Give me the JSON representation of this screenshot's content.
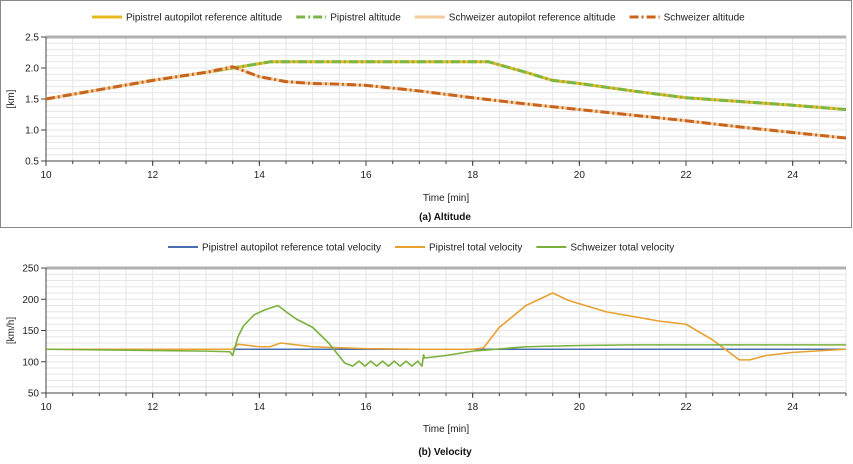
{
  "chart_data": [
    {
      "type": "line",
      "caption": "(a)  Altitude",
      "xlabel": "Time [min]",
      "ylabel": "[km]",
      "xlim": [
        10,
        25
      ],
      "ylim": [
        0.5,
        2.5
      ],
      "xticks": [
        10,
        12,
        14,
        16,
        18,
        20,
        22,
        24
      ],
      "yticks": [
        0.5,
        1.0,
        1.5,
        2.0,
        2.5
      ],
      "ytick_labels": [
        "0.5",
        "1.0",
        "1.5",
        "2.0",
        "2.5"
      ],
      "grid": true,
      "legend_position": "top",
      "series": [
        {
          "name": "Pipistrel autopilot reference altitude",
          "color": "#e8b820",
          "style": "solid",
          "x": [
            10,
            11,
            12,
            13,
            13.5,
            14,
            14.2,
            15,
            16,
            17,
            18,
            18.3,
            19,
            19.5,
            20,
            21,
            22,
            23,
            24,
            25
          ],
          "y": [
            1.5,
            1.65,
            1.8,
            1.93,
            2.0,
            2.07,
            2.1,
            2.1,
            2.1,
            2.1,
            2.1,
            2.1,
            1.93,
            1.8,
            1.75,
            1.63,
            1.52,
            1.46,
            1.4,
            1.33
          ]
        },
        {
          "name": "Pipistrel altitude",
          "color": "#7ab648",
          "style": "dashdot",
          "x": [
            10,
            11,
            12,
            13,
            13.5,
            14,
            14.2,
            15,
            16,
            17,
            18,
            18.3,
            19,
            19.5,
            20,
            21,
            22,
            23,
            24,
            25
          ],
          "y": [
            1.5,
            1.65,
            1.8,
            1.93,
            2.0,
            2.07,
            2.1,
            2.1,
            2.1,
            2.1,
            2.1,
            2.1,
            1.93,
            1.8,
            1.75,
            1.63,
            1.52,
            1.46,
            1.4,
            1.33
          ]
        },
        {
          "name": "Schweizer autopilot reference altitude",
          "color": "#f2cc9c",
          "style": "solid",
          "x": [
            10,
            11,
            12,
            13,
            13.5,
            14,
            14.5,
            15,
            15.5,
            16,
            17,
            18,
            19,
            20,
            21,
            22,
            23,
            24,
            25
          ],
          "y": [
            1.5,
            1.65,
            1.8,
            1.93,
            2.02,
            1.86,
            1.78,
            1.75,
            1.74,
            1.72,
            1.63,
            1.52,
            1.42,
            1.33,
            1.24,
            1.15,
            1.05,
            0.96,
            0.87
          ]
        },
        {
          "name": "Schweizer altitude",
          "color": "#c8641e",
          "style": "dashdot",
          "x": [
            10,
            11,
            12,
            13,
            13.5,
            14,
            14.5,
            15,
            15.5,
            16,
            17,
            18,
            19,
            20,
            21,
            22,
            23,
            24,
            25
          ],
          "y": [
            1.5,
            1.65,
            1.8,
            1.93,
            2.02,
            1.86,
            1.78,
            1.75,
            1.74,
            1.72,
            1.63,
            1.52,
            1.42,
            1.33,
            1.24,
            1.15,
            1.05,
            0.96,
            0.87
          ]
        }
      ]
    },
    {
      "type": "line",
      "caption": "(b)  Velocity",
      "xlabel": "Time [min]",
      "ylabel": "[km/h]",
      "xlim": [
        10,
        25
      ],
      "ylim": [
        50,
        250
      ],
      "xticks": [
        10,
        12,
        14,
        16,
        18,
        20,
        22,
        24
      ],
      "yticks": [
        50,
        100,
        150,
        200,
        250
      ],
      "ytick_labels": [
        "50",
        "100",
        "150",
        "200",
        "250"
      ],
      "grid": true,
      "legend_position": "top",
      "series": [
        {
          "name": "Pipistrel autopilot reference total velocity",
          "color": "#4a6fb0",
          "style": "solid",
          "x": [
            10,
            25
          ],
          "y": [
            120,
            120
          ]
        },
        {
          "name": "Pipistrel total velocity",
          "color": "#e8a030",
          "style": "solid",
          "x": [
            10,
            13.5,
            13.6,
            14.0,
            14.2,
            14.4,
            14.6,
            15.0,
            16,
            17,
            18.0,
            18.2,
            18.5,
            19.0,
            19.5,
            19.8,
            20.5,
            21.5,
            22.0,
            22.5,
            23.0,
            23.2,
            23.5,
            24,
            25
          ],
          "y": [
            120,
            120,
            128,
            124,
            124,
            130,
            128,
            124,
            121,
            120,
            120,
            122,
            155,
            190,
            210,
            198,
            180,
            165,
            160,
            135,
            103,
            103,
            110,
            115,
            120
          ]
        },
        {
          "name": "Schweizer total velocity",
          "color": "#7ab03c",
          "style": "solid",
          "x": [
            10,
            13.0,
            13.45,
            13.5,
            13.6,
            13.7,
            13.9,
            14.1,
            14.35,
            14.5,
            14.7,
            15.0,
            15.3,
            15.6,
            15.75,
            15.87,
            15.98,
            16.09,
            16.2,
            16.31,
            16.42,
            16.53,
            16.64,
            16.75,
            16.86,
            16.97,
            17.05,
            17.08,
            17.1,
            17.5,
            18.0,
            19,
            20,
            21,
            22,
            23,
            24,
            25
          ],
          "y": [
            120,
            117,
            116,
            110,
            140,
            157,
            175,
            183,
            190,
            180,
            168,
            155,
            130,
            98,
            93,
            101,
            93,
            101,
            93,
            101,
            93,
            101,
            93,
            101,
            93,
            101,
            93,
            111,
            106,
            110,
            117,
            124,
            126,
            127,
            127,
            127,
            127,
            127
          ]
        }
      ]
    }
  ]
}
